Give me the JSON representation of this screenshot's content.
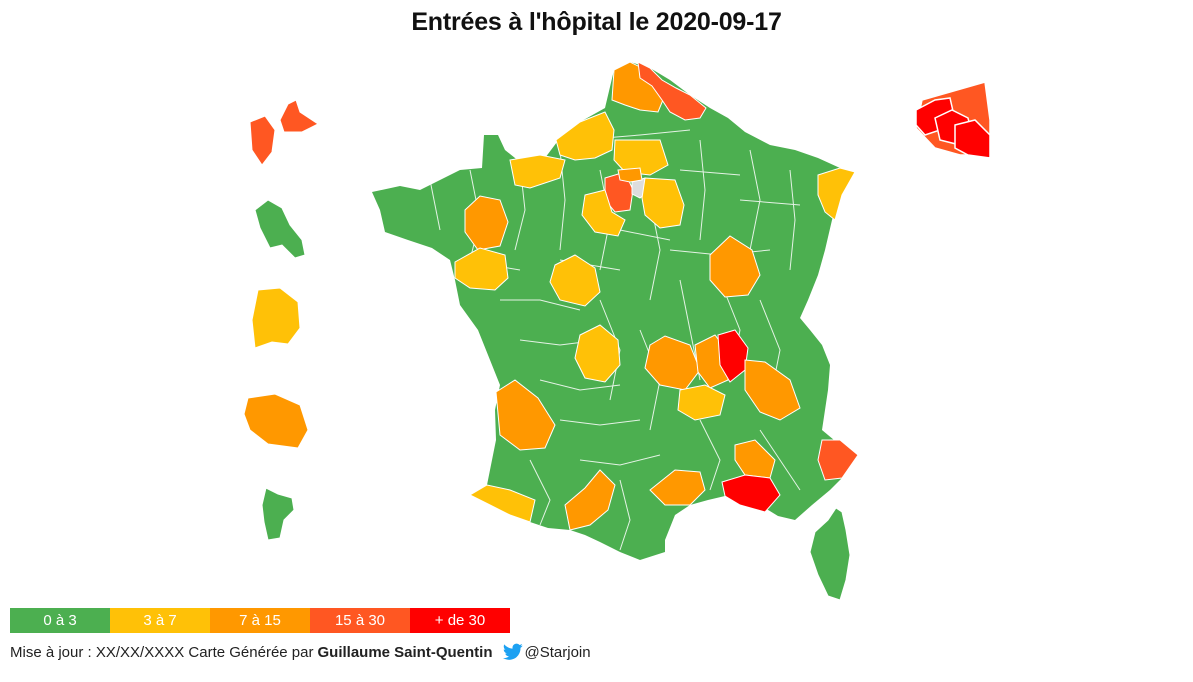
{
  "title": "Entrées à l'hôpital le 2020-09-17",
  "colors": {
    "g": "#4caf50",
    "y": "#ffc107",
    "o": "#ff9800",
    "r": "#ff5722",
    "d": "#ff0000",
    "n": "#dddddd"
  },
  "legend": [
    {
      "label": "0 à 3",
      "color": "#4caf50"
    },
    {
      "label": "3 à 7",
      "color": "#ffc107"
    },
    {
      "label": "7 à 15",
      "color": "#ff9800"
    },
    {
      "label": "15 à 30",
      "color": "#ff5722"
    },
    {
      "label": "+ de 30",
      "color": "#ff0000"
    }
  ],
  "footer": {
    "update": "Mise à jour : XX/XX/XXXX Carte Générée par",
    "author": "Guillaume Saint-Quentin",
    "twitter_icon": "twitter-bird-icon",
    "handle": "@Starjoin"
  }
}
